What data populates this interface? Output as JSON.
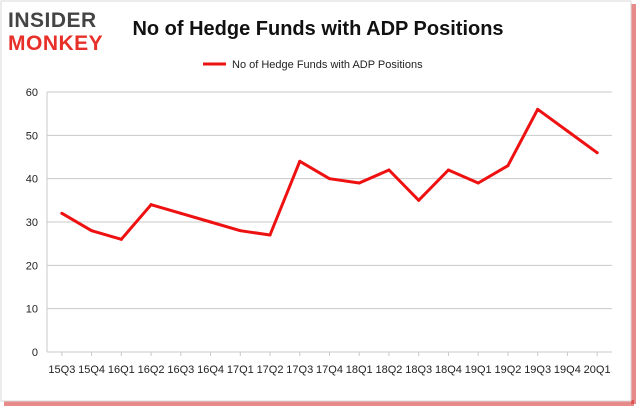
{
  "logo": {
    "line1": "INSIDER",
    "line2": "MONKEY"
  },
  "colors": {
    "line": "#ee1111",
    "logo_dark": "#444444",
    "logo_red": "#e8302a",
    "grid": "#c9c9c9",
    "shadow": "#cc2222"
  },
  "chart_data": {
    "type": "line",
    "title": "No of Hedge Funds with ADP Positions",
    "legend_position": "top-center",
    "grid": true,
    "ylim": [
      0,
      60
    ],
    "yticks": [
      0,
      10,
      20,
      30,
      40,
      50,
      60
    ],
    "categories": [
      "15Q3",
      "15Q4",
      "16Q1",
      "16Q2",
      "16Q3",
      "16Q4",
      "17Q1",
      "17Q2",
      "17Q3",
      "17Q4",
      "18Q1",
      "18Q2",
      "18Q3",
      "18Q4",
      "19Q1",
      "19Q2",
      "19Q3",
      "19Q4",
      "20Q1"
    ],
    "series": [
      {
        "name": "No of Hedge Funds with ADP Positions",
        "values": [
          32,
          28,
          26,
          34,
          32,
          30,
          28,
          27,
          44,
          40,
          39,
          42,
          35,
          42,
          39,
          43,
          56,
          51,
          46
        ]
      }
    ]
  }
}
